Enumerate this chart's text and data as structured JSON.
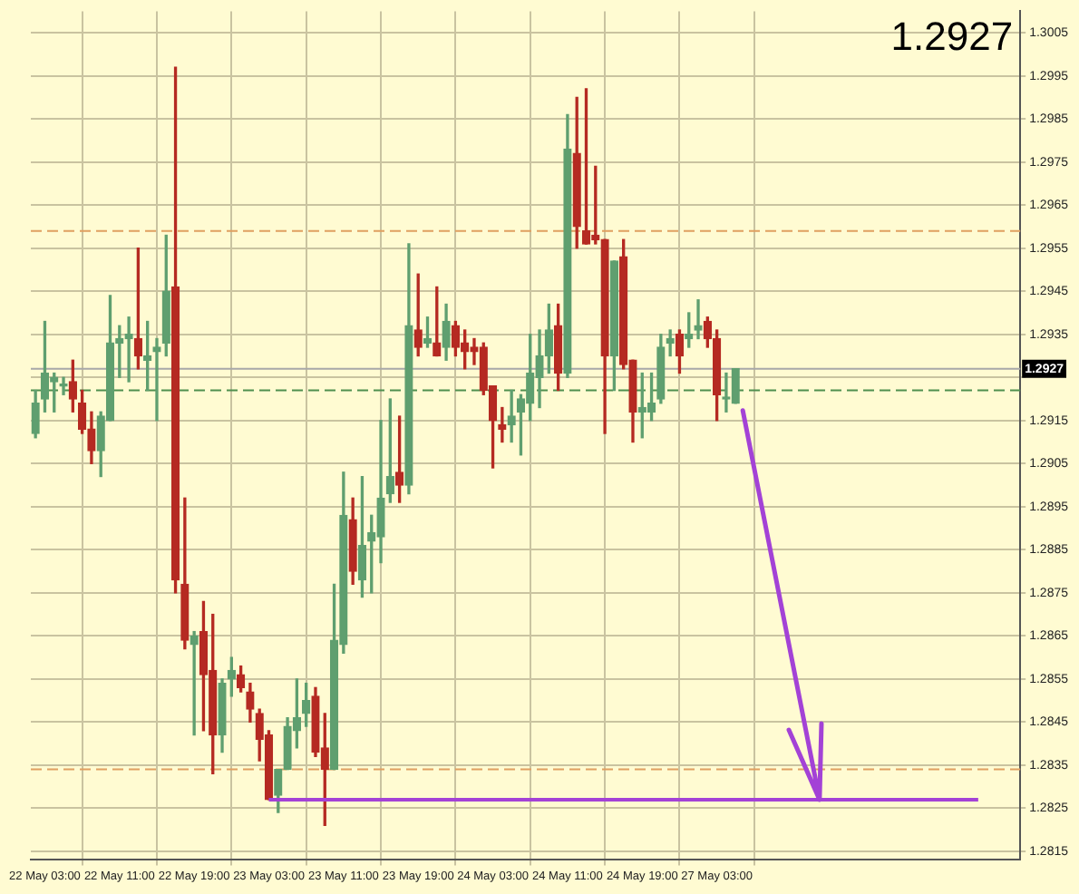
{
  "chart_data": {
    "type": "candlestick",
    "categories": [
      null,
      "22 May 03:00",
      null,
      null,
      null,
      null,
      null,
      null,
      null,
      "22 May 11:00",
      null,
      null,
      null,
      null,
      null,
      null,
      null,
      "22 May 19:00",
      null,
      null,
      null,
      null,
      null,
      null,
      null,
      "23 May 03:00",
      null,
      null,
      null,
      null,
      null,
      null,
      null,
      "23 May 11:00",
      null,
      null,
      null,
      null,
      null,
      null,
      null,
      "23 May 19:00",
      null,
      null,
      null,
      null,
      null,
      null,
      null,
      "24 May 03:00",
      null,
      null,
      null,
      null,
      null,
      null,
      null,
      "24 May 11:00",
      null,
      null,
      null,
      null,
      null,
      null,
      null,
      "24 May 19:00",
      null,
      null,
      null,
      null,
      null,
      null,
      null,
      "27 May 03:00",
      null,
      null,
      null,
      null,
      null,
      null,
      null,
      null,
      null,
      null,
      null,
      null,
      null,
      null,
      null,
      null,
      null,
      null,
      null,
      null,
      null,
      null,
      null,
      null,
      null,
      null,
      null,
      null,
      null,
      null,
      null,
      null
    ],
    "ohlc": [
      [
        1.2912,
        1.2922,
        1.2911,
        1.2919
      ],
      [
        1.292,
        1.2938,
        1.2917,
        1.2926
      ],
      [
        1.2924,
        1.2926,
        1.2917,
        1.2925
      ],
      [
        1.2923,
        1.2925,
        1.2921,
        1.2923
      ],
      [
        1.2924,
        1.2929,
        1.2917,
        1.292
      ],
      [
        1.2919,
        1.2922,
        1.2912,
        1.2913
      ],
      [
        1.2913,
        1.2917,
        1.2905,
        1.2908
      ],
      [
        1.2908,
        1.2917,
        1.2902,
        1.2916
      ],
      [
        1.2915,
        1.2944,
        1.2915,
        1.2933
      ],
      [
        1.2933,
        1.2937,
        1.2925,
        1.2934
      ],
      [
        1.2934,
        1.2939,
        1.2924,
        1.2935
      ],
      [
        1.2934,
        1.2955,
        1.2927,
        1.293
      ],
      [
        1.2929,
        1.2938,
        1.2922,
        1.293
      ],
      [
        1.2931,
        1.2934,
        1.2915,
        1.2932
      ],
      [
        1.2933,
        1.2958,
        1.293,
        1.2945
      ],
      [
        1.2946,
        1.2997,
        1.2875,
        1.2878
      ],
      [
        1.2877,
        1.2897,
        1.2862,
        1.2864
      ],
      [
        1.2863,
        1.2866,
        1.2842,
        1.2865
      ],
      [
        1.2866,
        1.2873,
        1.2843,
        1.2856
      ],
      [
        1.2857,
        1.287,
        1.2833,
        1.2842
      ],
      [
        1.2842,
        1.2855,
        1.2838,
        1.2854
      ],
      [
        1.2855,
        1.286,
        1.2851,
        1.2857
      ],
      [
        1.2856,
        1.2858,
        1.2852,
        1.2853
      ],
      [
        1.2852,
        1.2854,
        1.2845,
        1.2848
      ],
      [
        1.2847,
        1.2848,
        1.2836,
        1.2841
      ],
      [
        1.2842,
        1.2843,
        1.2827,
        1.2827
      ],
      [
        1.2828,
        1.2834,
        1.2824,
        1.2834
      ],
      [
        1.2834,
        1.2846,
        1.2834,
        1.2844
      ],
      [
        1.2843,
        1.2855,
        1.2839,
        1.2846
      ],
      [
        1.2847,
        1.2854,
        1.2844,
        1.285
      ],
      [
        1.2851,
        1.2853,
        1.2837,
        1.2838
      ],
      [
        1.2839,
        1.2847,
        1.2821,
        1.2834
      ],
      [
        1.2834,
        1.2877,
        1.2834,
        1.2864
      ],
      [
        1.2863,
        1.2903,
        1.2861,
        1.2893
      ],
      [
        1.2892,
        1.2897,
        1.2877,
        1.288
      ],
      [
        1.2878,
        1.2902,
        1.2874,
        1.2886
      ],
      [
        1.2887,
        1.2893,
        1.2875,
        1.2889
      ],
      [
        1.2888,
        1.2915,
        1.2882,
        1.2897
      ],
      [
        1.2898,
        1.292,
        1.2896,
        1.2902
      ],
      [
        1.2903,
        1.2916,
        1.2896,
        1.29
      ],
      [
        1.29,
        1.2956,
        1.2898,
        1.2937
      ],
      [
        1.2936,
        1.2949,
        1.293,
        1.2932
      ],
      [
        1.2933,
        1.2939,
        1.2932,
        1.2934
      ],
      [
        1.2933,
        1.2946,
        1.293,
        1.293
      ],
      [
        1.2932,
        1.2942,
        1.2929,
        1.2938
      ],
      [
        1.2937,
        1.2938,
        1.293,
        1.2932
      ],
      [
        1.2933,
        1.2936,
        1.2927,
        1.2931
      ],
      [
        1.2932,
        1.2934,
        1.2928,
        1.2931
      ],
      [
        1.2932,
        1.2933,
        1.2921,
        1.2922
      ],
      [
        1.2923,
        1.2923,
        1.2904,
        1.2915
      ],
      [
        1.2914,
        1.2918,
        1.291,
        1.2913
      ],
      [
        1.2914,
        1.2922,
        1.291,
        1.2916
      ],
      [
        1.2917,
        1.2921,
        1.2907,
        1.292
      ],
      [
        1.2919,
        1.2935,
        1.2915,
        1.2926
      ],
      [
        1.2925,
        1.2936,
        1.2918,
        1.293
      ],
      [
        1.293,
        1.2942,
        1.2926,
        1.2936
      ],
      [
        1.2937,
        1.2942,
        1.2922,
        1.2926
      ],
      [
        1.2926,
        1.2986,
        1.2925,
        1.2978
      ],
      [
        1.2977,
        1.299,
        1.2955,
        1.296
      ],
      [
        1.2959,
        1.2992,
        1.2956,
        1.2956
      ],
      [
        1.2958,
        1.2974,
        1.2956,
        1.2957
      ],
      [
        1.2957,
        1.2957,
        1.2912,
        1.293
      ],
      [
        1.293,
        1.2952,
        1.2922,
        1.2952
      ],
      [
        1.2953,
        1.2957,
        1.2927,
        1.2928
      ],
      [
        1.2929,
        1.2929,
        1.291,
        1.2917
      ],
      [
        1.2917,
        1.2926,
        1.2911,
        1.2918
      ],
      [
        1.2917,
        1.2926,
        1.2915,
        1.2919
      ],
      [
        1.292,
        1.2935,
        1.2919,
        1.2932
      ],
      [
        1.2933,
        1.2936,
        1.293,
        1.2934
      ],
      [
        1.2935,
        1.2936,
        1.2926,
        1.293
      ],
      [
        1.2934,
        1.294,
        1.2932,
        1.2935
      ],
      [
        1.2936,
        1.2943,
        1.2934,
        1.2937
      ],
      [
        1.2938,
        1.2939,
        1.2932,
        1.2934
      ],
      [
        1.2934,
        1.2936,
        1.2915,
        1.2921
      ],
      [
        1.292,
        1.2926,
        1.2917,
        1.292
      ],
      [
        1.2919,
        1.2927,
        1.2919,
        1.2927
      ],
      null,
      null,
      null,
      null,
      null,
      null,
      null,
      null,
      null,
      null,
      null,
      null,
      null,
      null,
      null,
      null,
      null,
      null,
      null,
      null,
      null,
      null,
      null,
      null,
      null,
      null,
      null,
      null,
      null,
      null
    ],
    "colors": [
      "#5f9f6f",
      "#5f9f6f",
      "#5f9f6f",
      "#5f9f6f",
      "#b52a22",
      "#b52a22",
      "#b52a22",
      "#5f9f6f",
      "#5f9f6f",
      "#5f9f6f",
      "#5f9f6f",
      "#b52a22",
      "#5f9f6f",
      "#5f9f6f",
      "#5f9f6f",
      "#b52a22",
      "#b52a22",
      "#5f9f6f",
      "#b52a22",
      "#b52a22",
      "#5f9f6f",
      "#5f9f6f",
      "#b52a22",
      "#b52a22",
      "#b52a22",
      "#b52a22",
      "#5f9f6f",
      "#5f9f6f",
      "#5f9f6f",
      "#5f9f6f",
      "#b52a22",
      "#b52a22",
      "#5f9f6f",
      "#5f9f6f",
      "#b52a22",
      "#5f9f6f",
      "#5f9f6f",
      "#5f9f6f",
      "#5f9f6f",
      "#b52a22",
      "#5f9f6f",
      "#b52a22",
      "#5f9f6f",
      "#b52a22",
      "#5f9f6f",
      "#b52a22",
      "#b52a22",
      "#b52a22",
      "#b52a22",
      "#b52a22",
      "#b52a22",
      "#5f9f6f",
      "#5f9f6f",
      "#5f9f6f",
      "#5f9f6f",
      "#5f9f6f",
      "#b52a22",
      "#5f9f6f",
      "#b52a22",
      "#b52a22",
      "#b52a22",
      "#b52a22",
      "#5f9f6f",
      "#b52a22",
      "#b52a22",
      "#5f9f6f",
      "#5f9f6f",
      "#5f9f6f",
      "#5f9f6f",
      "#b52a22",
      "#5f9f6f",
      "#5f9f6f",
      "#b52a22",
      "#b52a22",
      "#5f9f6f",
      "#5f9f6f",
      null,
      null,
      null,
      null,
      null,
      null,
      null,
      null,
      null,
      null,
      null,
      null,
      null,
      null,
      null,
      null,
      null,
      null,
      null,
      null,
      null,
      null,
      null,
      null,
      null,
      null,
      null,
      null,
      null,
      null
    ],
    "series": [
      {
        "type": "line",
        "color": "#a342d6",
        "values": [
          null,
          null,
          null,
          null,
          null,
          null,
          null,
          null,
          null,
          null,
          null,
          null,
          null,
          null,
          null,
          null,
          null,
          null,
          null,
          null,
          null,
          null,
          null,
          null,
          null,
          1.2827,
          1.2827,
          1.2827,
          1.2827,
          1.2827,
          1.2827,
          1.2827,
          1.2827,
          1.2827,
          1.2827,
          1.2827,
          1.2827,
          1.2827,
          1.2827,
          1.2827,
          1.2827,
          1.2827,
          1.2827,
          1.2827,
          1.2827,
          1.2827,
          1.2827,
          1.2827,
          1.2827,
          1.2827,
          1.2827,
          1.2827,
          1.2827,
          1.2827,
          1.2827,
          1.2827,
          1.2827,
          1.2827,
          1.2827,
          1.2827,
          1.2827,
          1.2827,
          1.2827,
          1.2827,
          1.2827,
          1.2827,
          1.2827,
          1.2827,
          1.2827,
          1.2827,
          1.2827,
          1.2827,
          1.2827,
          1.2827,
          1.2827,
          1.2827,
          1.2827,
          1.2827,
          1.2827,
          1.2827,
          1.2827,
          1.2827,
          1.2827,
          1.2827,
          1.2827,
          1.2827,
          1.2827,
          1.2827,
          1.2827,
          1.2827,
          1.2827,
          1.2827,
          1.2827,
          1.2827,
          1.2827,
          1.2827,
          1.2827,
          1.2827,
          1.2827,
          1.2827,
          1.2827,
          1.2827,
          null,
          null,
          null,
          null
        ]
      }
    ],
    "ylim": [
      1.2813,
      1.301
    ],
    "yticks": [
      1.2815,
      1.2825,
      1.2835,
      1.2845,
      1.2855,
      1.2865,
      1.2875,
      1.2885,
      1.2895,
      1.2905,
      1.2915,
      {
        "value": 1.2925,
        "label": null
      },
      1.2935,
      1.2945,
      1.2955,
      1.2965,
      1.2975,
      1.2985,
      1.2995,
      1.3005
    ],
    "grid": true,
    "ref_lines": [
      {
        "axis": "y",
        "value": 1.2959,
        "color": "#e0a060",
        "line_style": "dashed"
      },
      {
        "axis": "y",
        "value": 1.2834,
        "color": "#e0a060",
        "line_style": "dashed"
      },
      {
        "axis": "y",
        "value": 1.2922,
        "color": "#4f8f4f",
        "line_style": "dashed"
      },
      {
        "axis": "y",
        "value": 1.2927,
        "color": "#a8a8a8",
        "line_style": "solid",
        "label": "1.2927"
      }
    ],
    "annotations": [
      "1.2927"
    ]
  }
}
